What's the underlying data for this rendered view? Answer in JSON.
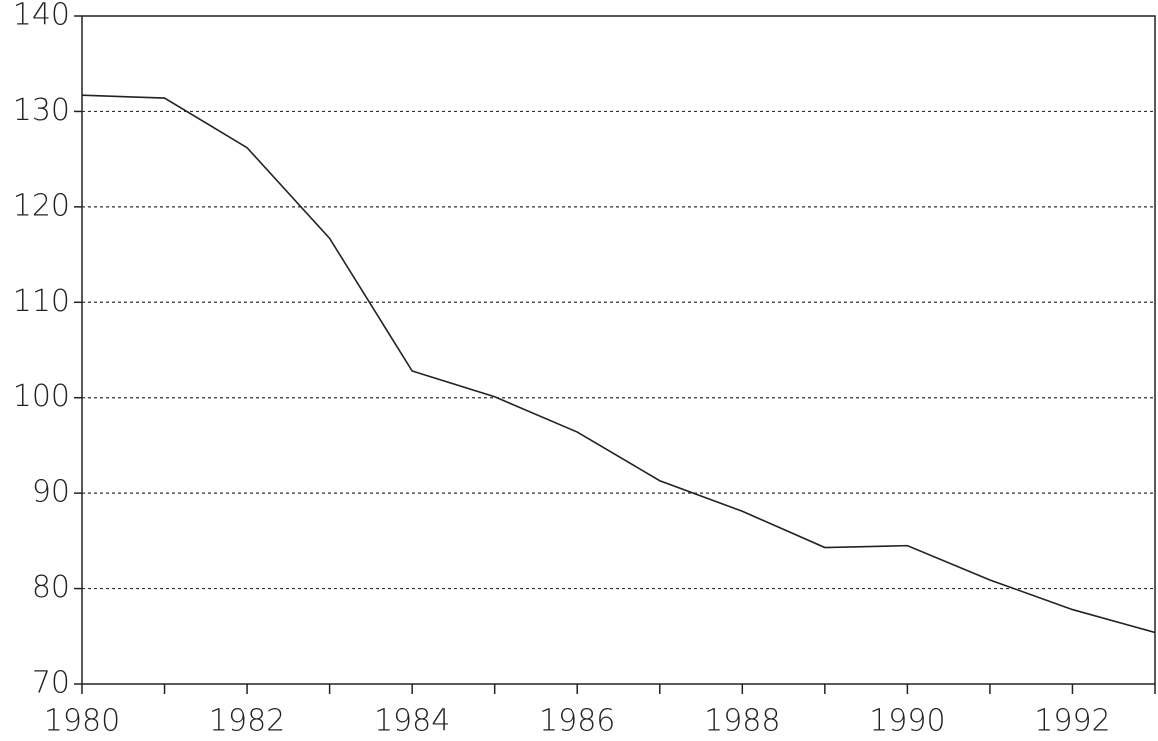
{
  "chart_data": {
    "type": "line",
    "x": [
      1980,
      1981,
      1982,
      1983,
      1984,
      1985,
      1986,
      1987,
      1988,
      1989,
      1990,
      1991,
      1992,
      1993
    ],
    "values": [
      131.7,
      131.4,
      126.2,
      116.7,
      102.8,
      100.1,
      96.4,
      91.3,
      88.1,
      84.3,
      84.5,
      80.9,
      77.8,
      75.4
    ],
    "color": "#222222",
    "xlim": [
      1980,
      1993
    ],
    "xticks": [
      1980,
      1982,
      1984,
      1986,
      1988,
      1990,
      1992
    ],
    "xminorticks": [
      1981,
      1983,
      1985,
      1987,
      1989,
      1991,
      1993
    ],
    "ylim": [
      70,
      140
    ],
    "yticks": [
      70,
      80,
      90,
      100,
      110,
      120,
      130,
      140
    ],
    "grid": true
  }
}
